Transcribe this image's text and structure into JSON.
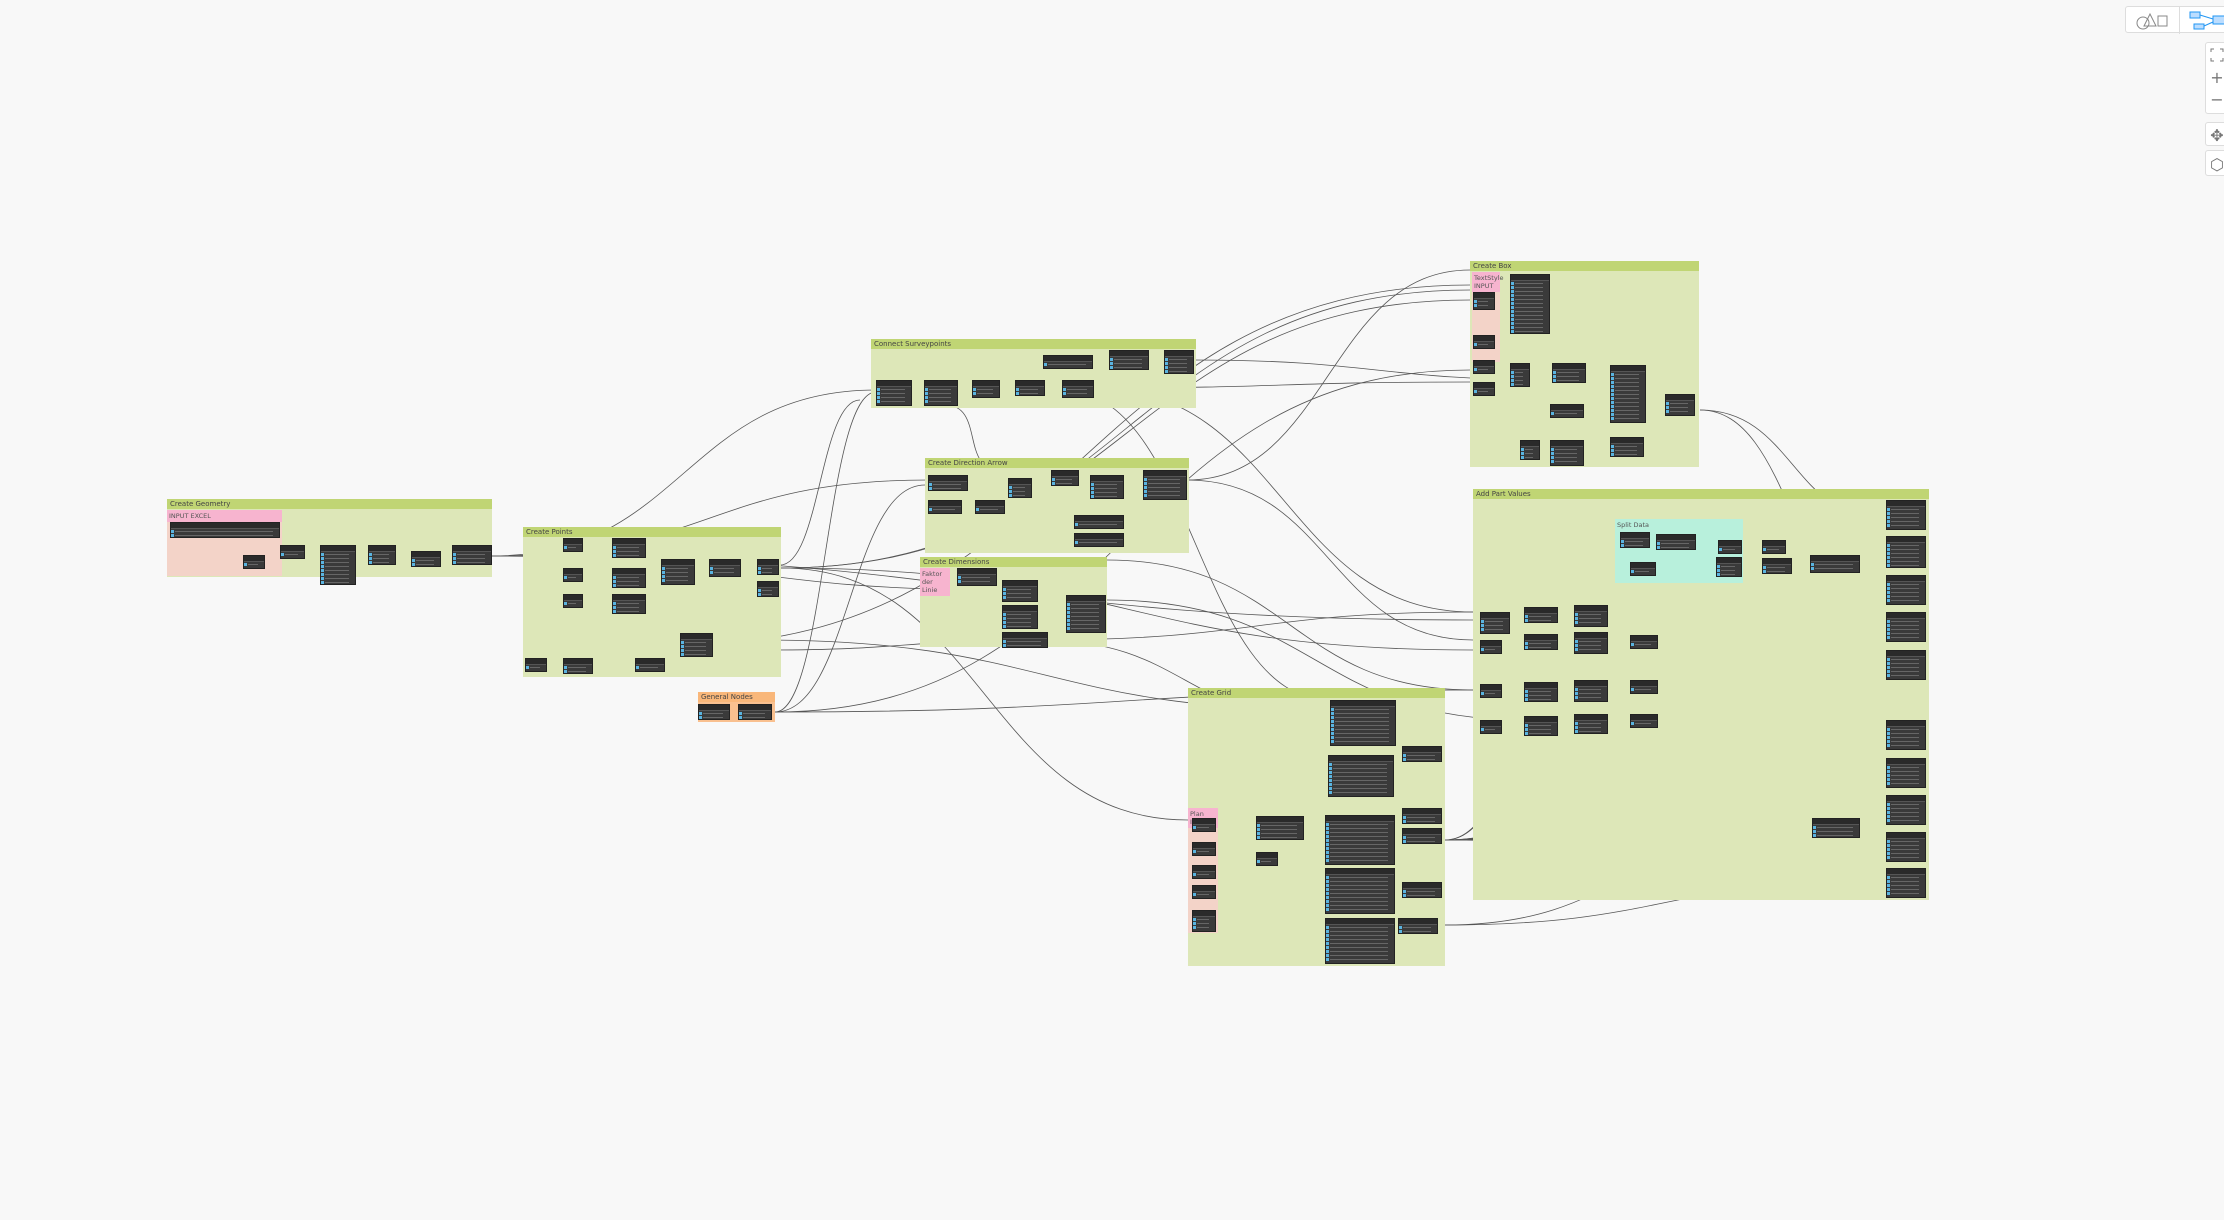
{
  "canvas": {
    "groups": [
      {
        "id": "create-geometry",
        "title": "Create Geometry",
        "color": "#dde7b8"
      },
      {
        "id": "create-points",
        "title": "Create Points",
        "color": "#dde7b8"
      },
      {
        "id": "connect-surveypoints",
        "title": "Connect Surveypoints",
        "color": "#dde7b8"
      },
      {
        "id": "create-direction-arrow",
        "title": "Create Direction Arrow",
        "color": "#dde7b8"
      },
      {
        "id": "create-dimensions",
        "title": "Create Dimensions",
        "color": "#dde7b8"
      },
      {
        "id": "general-nodes",
        "title": "General Nodes",
        "color": "#f9c08f"
      },
      {
        "id": "create-box",
        "title": "Create Box",
        "color": "#dde7b8"
      },
      {
        "id": "add-part-values",
        "title": "Add Part Values",
        "color": "#dde7b8"
      },
      {
        "id": "create-grid",
        "title": "Create Grid",
        "color": "#dde7b8"
      }
    ],
    "subgroups": {
      "input_excel": "INPUT EXCEL",
      "faktor": "Faktor der Linie",
      "textstyle": "TextStyle INPUT",
      "split_data": "Split Data",
      "plan_input": "Plan INPUT"
    }
  },
  "toolbar": {
    "geometry_view_icon": "shapes-icon",
    "graph_view_icon": "graph-nodes-icon",
    "zoom_fit_icon": "fit-view-icon",
    "zoom_in_icon": "plus-icon",
    "zoom_out_icon": "minus-icon",
    "pan_icon": "pan-arrows-icon",
    "orbit_icon": "cube-icon"
  },
  "colors": {
    "group": "#dde7b8",
    "group_header": "#c0d574",
    "input_group": "#f7b4cf",
    "split_group": "#b8f0dc",
    "general_group": "#f9c08f",
    "node": "#3a3a3a",
    "port": "#5ab4e0"
  }
}
